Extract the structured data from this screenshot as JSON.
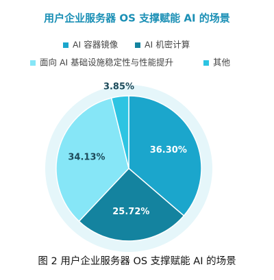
{
  "chart_data": {
    "type": "pie",
    "title": "用户企业服务器 OS 支撑赋能 AI 的场景",
    "categories": [
      "AI 容器镜像",
      "AI 机密计算",
      "面向 AI 基础设施稳定性与性能提升",
      "其他"
    ],
    "values": [
      36.3,
      25.72,
      34.13,
      3.85
    ],
    "value_labels": [
      "36.30%",
      "25.72%",
      "34.13%",
      "3.85%"
    ],
    "colors": [
      "#1ba6cc",
      "#14839f",
      "#86e6f7",
      "#2dc4e2"
    ],
    "caption": "图 2 用户企业服务器 OS 支撑赋能 AI 的场景"
  }
}
